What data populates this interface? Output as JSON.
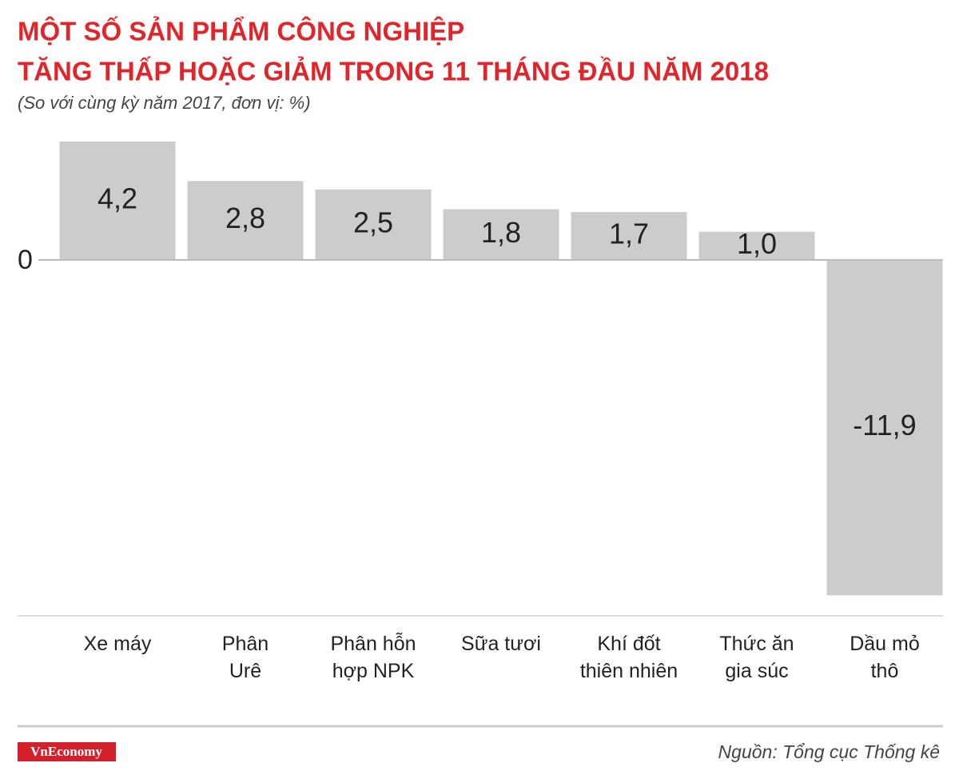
{
  "chart_data": {
    "type": "bar",
    "title": [
      "MỘT SỐ SẢN PHẨM CÔNG NGHIỆP",
      "TĂNG THẤP HOẶC GIẢM TRONG 11 THÁNG ĐẦU NĂM 2018"
    ],
    "subtitle": "(So với cùng kỳ năm 2017, đơn vị: %)",
    "categories": [
      "Xe máy",
      "Phân\nUrê",
      "Phân hỗn\nhợp NPK",
      "Sữa tươi",
      "Khí đốt\nthiên nhiên",
      "Thức ăn\ngia súc",
      "Dầu mỏ\nthô"
    ],
    "values": [
      4.2,
      2.8,
      2.5,
      1.8,
      1.7,
      1.0,
      -11.9
    ],
    "value_labels": [
      "4,2",
      "2,8",
      "2,5",
      "1,8",
      "1,7",
      "1,0",
      "-11,9"
    ],
    "color": "#cccccc",
    "ylim": [
      -12.5,
      4.7
    ],
    "yticks": [
      0
    ],
    "source": "Nguồn: Tổng cục Thống kê",
    "logo": "VnEconomy"
  }
}
